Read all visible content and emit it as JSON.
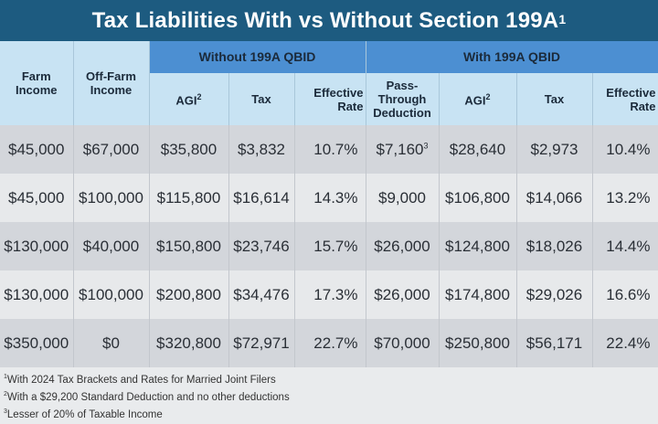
{
  "title": "Tax Liabilities With vs Without Section 199A",
  "title_note": "1",
  "colors": {
    "title_bar": "#1d5b80",
    "group_header": "#4c8fd2",
    "sub_header": "#c8e3f3",
    "row_dark": "#d3d6db",
    "row_light": "#e7e9eb"
  },
  "chart_data": {
    "type": "table",
    "headers": {
      "farm_income": "Farm Income",
      "off_farm_income": "Off-Farm Income",
      "group_without": "Without 199A QBID",
      "group_with": "With 199A QBID",
      "agi": "AGI",
      "agi_note": "2",
      "tax": "Tax",
      "effective_rate": "Effective Rate",
      "pass_through": "Pass-Through Deduction"
    },
    "rows": [
      {
        "farm": "$45,000",
        "off_farm": "$67,000",
        "agi_without": "$35,800",
        "tax_without": "$3,832",
        "rate_without": "10.7%",
        "deduction": "$7,160",
        "deduction_note": "3",
        "agi_with": "$28,640",
        "tax_with": "$2,973",
        "rate_with": "10.4%"
      },
      {
        "farm": "$45,000",
        "off_farm": "$100,000",
        "agi_without": "$115,800",
        "tax_without": "$16,614",
        "rate_without": "14.3%",
        "deduction": "$9,000",
        "deduction_note": "",
        "agi_with": "$106,800",
        "tax_with": "$14,066",
        "rate_with": "13.2%"
      },
      {
        "farm": "$130,000",
        "off_farm": "$40,000",
        "agi_without": "$150,800",
        "tax_without": "$23,746",
        "rate_without": "15.7%",
        "deduction": "$26,000",
        "deduction_note": "",
        "agi_with": "$124,800",
        "tax_with": "$18,026",
        "rate_with": "14.4%"
      },
      {
        "farm": "$130,000",
        "off_farm": "$100,000",
        "agi_without": "$200,800",
        "tax_without": "$34,476",
        "rate_without": "17.3%",
        "deduction": "$26,000",
        "deduction_note": "",
        "agi_with": "$174,800",
        "tax_with": "$29,026",
        "rate_with": "16.6%"
      },
      {
        "farm": "$350,000",
        "off_farm": "$0",
        "agi_without": "$320,800",
        "tax_without": "$72,971",
        "rate_without": "22.7%",
        "deduction": "$70,000",
        "deduction_note": "",
        "agi_with": "$250,800",
        "tax_with": "$56,171",
        "rate_with": "22.4%"
      }
    ]
  },
  "footnotes": [
    {
      "mark": "1",
      "text": "With 2024 Tax Brackets and Rates for Married Joint Filers"
    },
    {
      "mark": "2",
      "text": "With a $29,200 Standard Deduction and no other deductions"
    },
    {
      "mark": "3",
      "text": "Lesser of 20% of Taxable Income"
    }
  ]
}
